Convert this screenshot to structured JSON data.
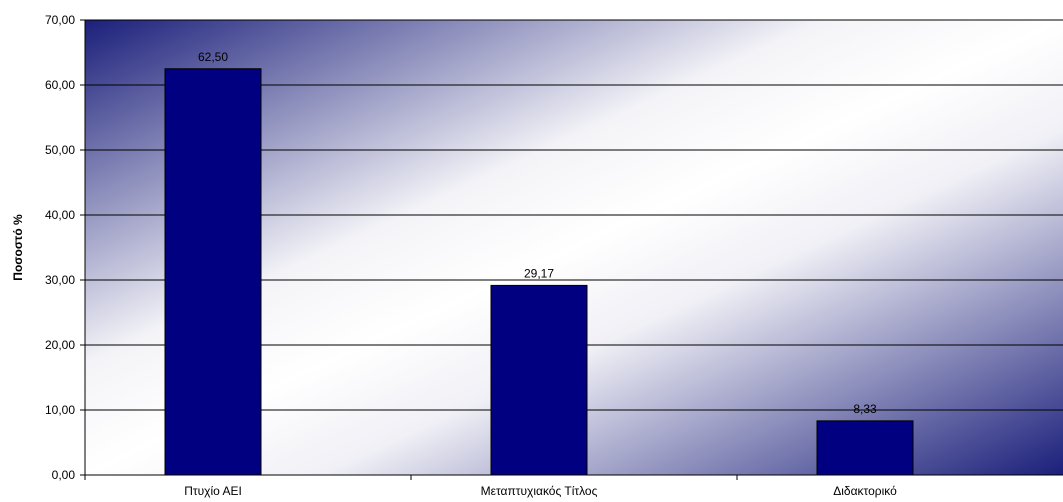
{
  "chart_data": {
    "type": "bar",
    "categories": [
      "Πτυχίο ΑΕΙ",
      "Μεταπτυχιακός Τίτλος",
      "Διδακτορικό"
    ],
    "values": [
      62.5,
      29.17,
      8.33
    ],
    "data_labels": [
      "62,50",
      "29,17",
      "8,33"
    ],
    "title": "",
    "xlabel": "",
    "ylabel": "Ποσοστό %",
    "ylim": [
      0,
      70
    ],
    "yticks": [
      0,
      10,
      20,
      30,
      40,
      50,
      60,
      70
    ],
    "ytick_labels": [
      "0,00",
      "10,00",
      "20,00",
      "30,00",
      "40,00",
      "50,00",
      "60,00",
      "70,00"
    ],
    "grid": true,
    "legend": "none",
    "colors": {
      "bar_fill": "#000080",
      "bar_stroke": "#000000",
      "background_dark": "#1a237e",
      "background_light": "#ffffff",
      "gridline": "#000000"
    }
  }
}
